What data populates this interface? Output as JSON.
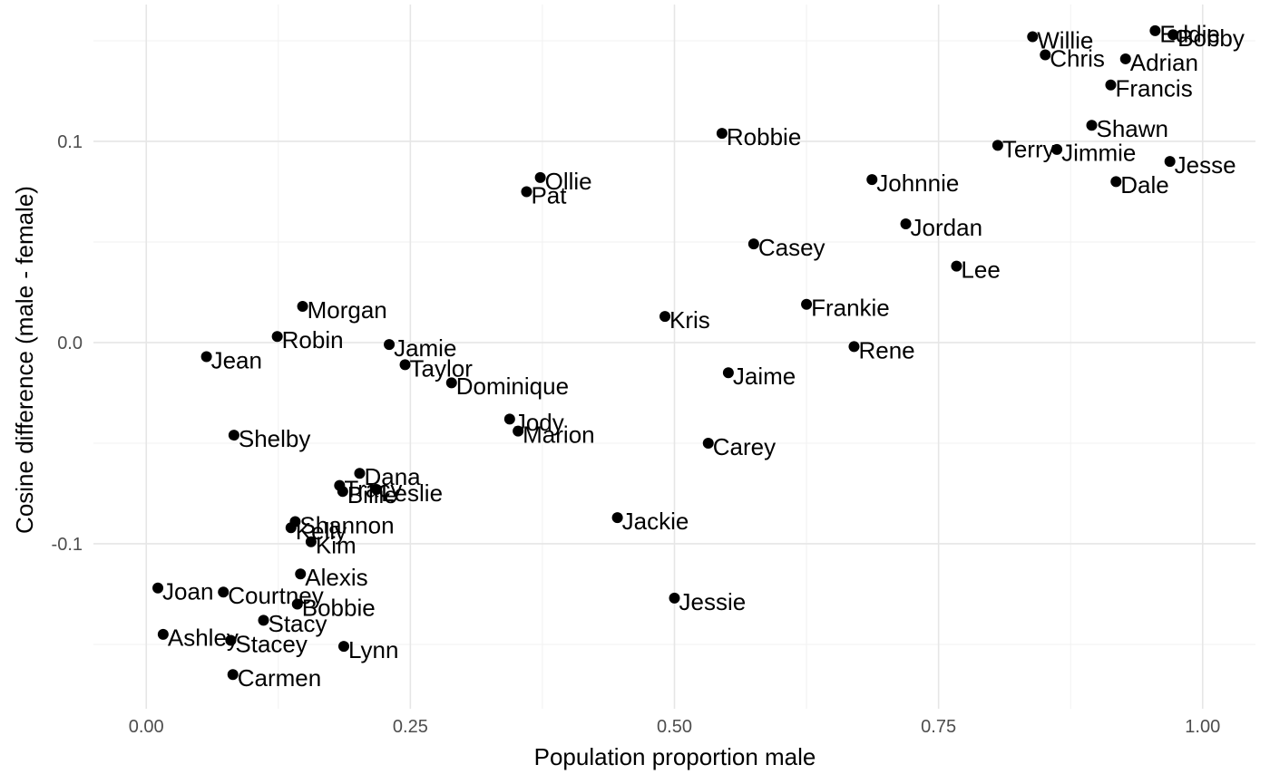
{
  "chart_data": {
    "type": "scatter",
    "xlabel": "Population proportion male",
    "ylabel": "Cosine difference (male - female)",
    "xlim": [
      -0.05,
      1.05
    ],
    "ylim": [
      -0.182,
      0.168
    ],
    "xticks": [
      0.0,
      0.25,
      0.5,
      0.75,
      1.0
    ],
    "xtick_labels": [
      "0.00",
      "0.25",
      "0.50",
      "0.75",
      "1.00"
    ],
    "yticks": [
      -0.1,
      0.0,
      0.1
    ],
    "ytick_labels": [
      "-0.1",
      "0.0",
      "0.1"
    ],
    "grid": true,
    "point_color": "#000000",
    "points": [
      {
        "label": "Eddie",
        "x": 0.955,
        "y": 0.155
      },
      {
        "label": "Bobby",
        "x": 0.972,
        "y": 0.153
      },
      {
        "label": "Willie",
        "x": 0.839,
        "y": 0.152
      },
      {
        "label": "Chris",
        "x": 0.851,
        "y": 0.143
      },
      {
        "label": "Adrian",
        "x": 0.927,
        "y": 0.141
      },
      {
        "label": "Francis",
        "x": 0.913,
        "y": 0.128
      },
      {
        "label": "Shawn",
        "x": 0.895,
        "y": 0.108
      },
      {
        "label": "Robbie",
        "x": 0.545,
        "y": 0.104
      },
      {
        "label": "Terry",
        "x": 0.806,
        "y": 0.098
      },
      {
        "label": "Jimmie",
        "x": 0.862,
        "y": 0.096
      },
      {
        "label": "Jesse",
        "x": 0.969,
        "y": 0.09
      },
      {
        "label": "Ollie",
        "x": 0.373,
        "y": 0.082
      },
      {
        "label": "Johnnie",
        "x": 0.687,
        "y": 0.081
      },
      {
        "label": "Dale",
        "x": 0.918,
        "y": 0.08
      },
      {
        "label": "Pat",
        "x": 0.36,
        "y": 0.075
      },
      {
        "label": "Jordan",
        "x": 0.719,
        "y": 0.059
      },
      {
        "label": "Casey",
        "x": 0.575,
        "y": 0.049
      },
      {
        "label": "Lee",
        "x": 0.767,
        "y": 0.038
      },
      {
        "label": "Frankie",
        "x": 0.625,
        "y": 0.019
      },
      {
        "label": "Morgan",
        "x": 0.148,
        "y": 0.018
      },
      {
        "label": "Kris",
        "x": 0.491,
        "y": 0.013
      },
      {
        "label": "Robin",
        "x": 0.124,
        "y": 0.003
      },
      {
        "label": "Jamie",
        "x": 0.23,
        "y": -0.001
      },
      {
        "label": "Rene",
        "x": 0.67,
        "y": -0.002
      },
      {
        "label": "Jean",
        "x": 0.057,
        "y": -0.007
      },
      {
        "label": "Taylor",
        "x": 0.245,
        "y": -0.011
      },
      {
        "label": "Jaime",
        "x": 0.551,
        "y": -0.015
      },
      {
        "label": "Dominique",
        "x": 0.289,
        "y": -0.02
      },
      {
        "label": "Jody",
        "x": 0.344,
        "y": -0.038
      },
      {
        "label": "Marion",
        "x": 0.352,
        "y": -0.044
      },
      {
        "label": "Shelby",
        "x": 0.083,
        "y": -0.046
      },
      {
        "label": "Carey",
        "x": 0.532,
        "y": -0.05
      },
      {
        "label": "Dana",
        "x": 0.202,
        "y": -0.065
      },
      {
        "label": "Tracy",
        "x": 0.183,
        "y": -0.071
      },
      {
        "label": "Leslie",
        "x": 0.218,
        "y": -0.073
      },
      {
        "label": "Billie",
        "x": 0.186,
        "y": -0.074
      },
      {
        "label": "Jackie",
        "x": 0.446,
        "y": -0.087
      },
      {
        "label": "Shannon",
        "x": 0.141,
        "y": -0.089
      },
      {
        "label": "Kelly",
        "x": 0.137,
        "y": -0.092
      },
      {
        "label": "Kim",
        "x": 0.156,
        "y": -0.099
      },
      {
        "label": "Alexis",
        "x": 0.146,
        "y": -0.115
      },
      {
        "label": "Joan",
        "x": 0.011,
        "y": -0.122
      },
      {
        "label": "Courtney",
        "x": 0.073,
        "y": -0.124
      },
      {
        "label": "Jessie",
        "x": 0.5,
        "y": -0.127
      },
      {
        "label": "Bobbie",
        "x": 0.143,
        "y": -0.13
      },
      {
        "label": "Stacy",
        "x": 0.111,
        "y": -0.138
      },
      {
        "label": "Ashley",
        "x": 0.016,
        "y": -0.145
      },
      {
        "label": "Stacey",
        "x": 0.08,
        "y": -0.148
      },
      {
        "label": "Lynn",
        "x": 0.187,
        "y": -0.151
      },
      {
        "label": "Carmen",
        "x": 0.082,
        "y": -0.165
      }
    ]
  }
}
